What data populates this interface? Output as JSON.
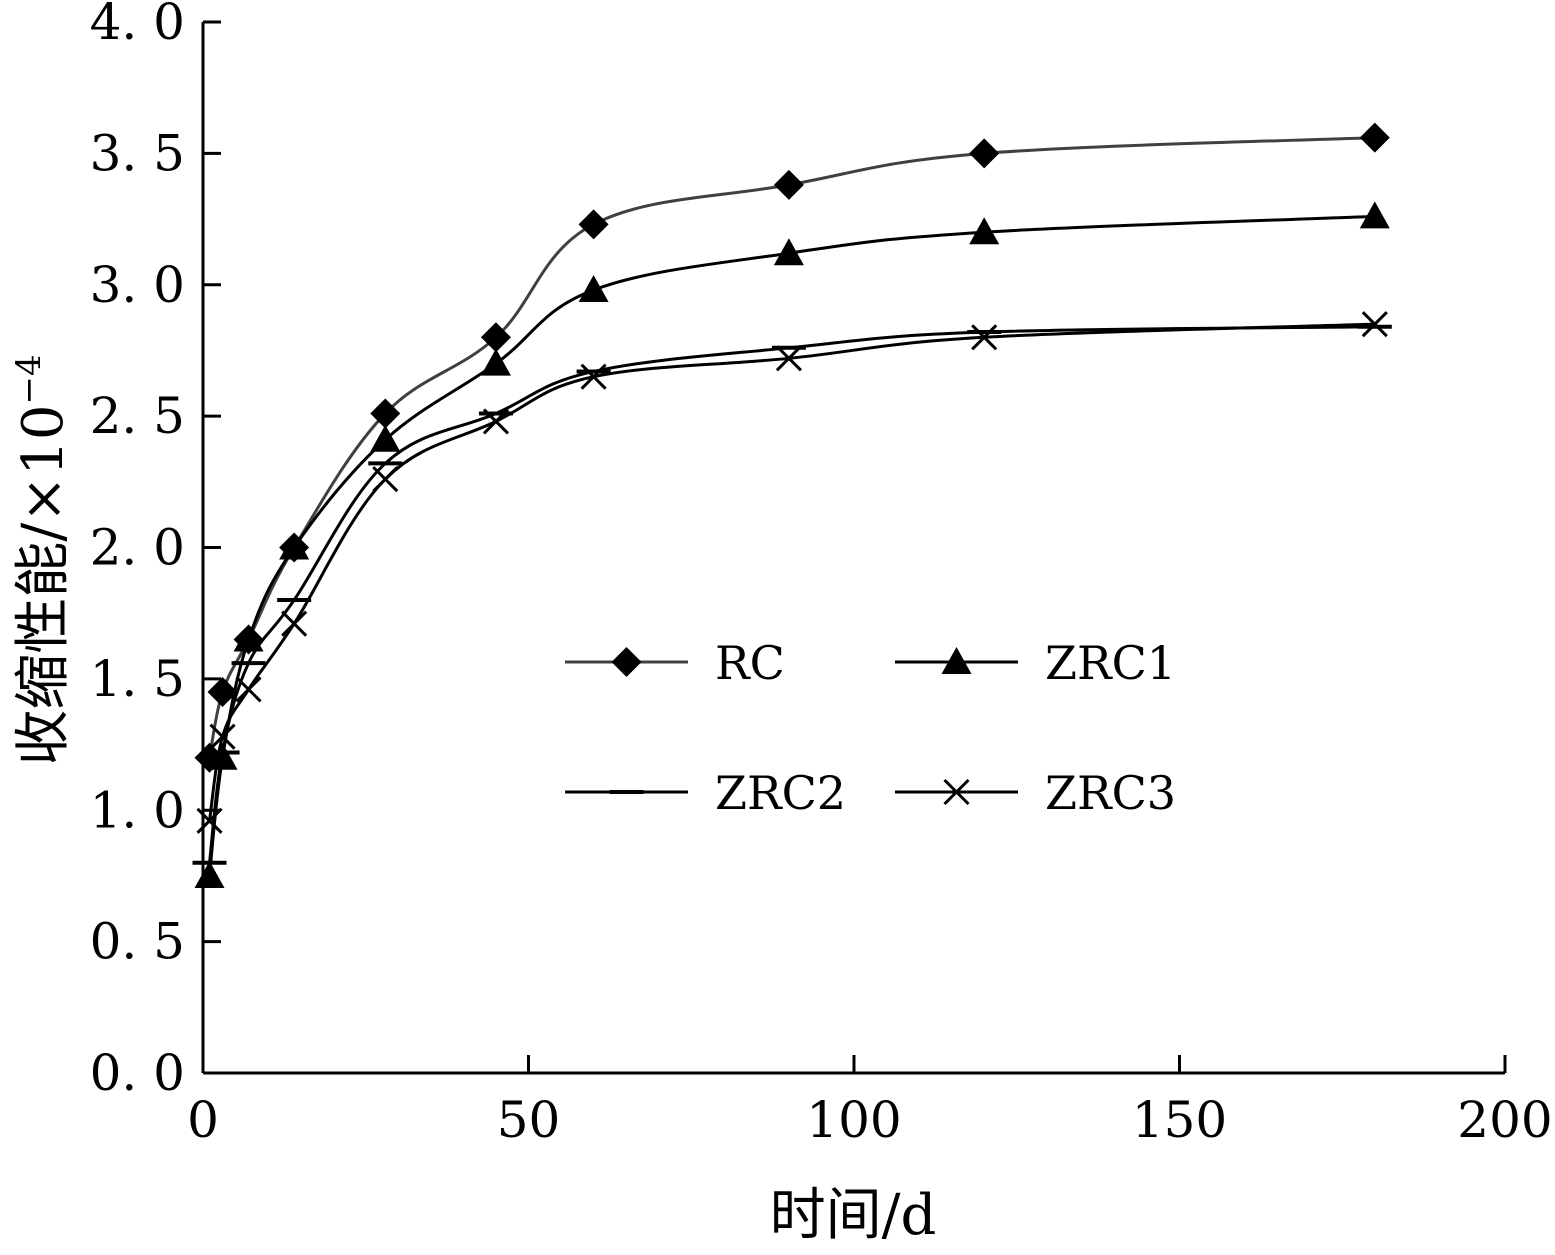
{
  "chart_data": {
    "type": "line",
    "title": "",
    "xlabel": "时间/d",
    "ylabel": "收缩性能/×10",
    "ylabel_exponent": "−4",
    "xlim": [
      0,
      200
    ],
    "ylim": [
      0.0,
      4.0
    ],
    "x_ticks": [
      0,
      50,
      100,
      150,
      200
    ],
    "x_tick_labels": [
      "0",
      "50",
      "100",
      "150",
      "200"
    ],
    "y_ticks": [
      0.0,
      0.5,
      1.0,
      1.5,
      2.0,
      2.5,
      3.0,
      3.5,
      4.0
    ],
    "y_tick_labels": [
      "0. 0",
      "0. 5",
      "1. 0",
      "1. 5",
      "2. 0",
      "2. 5",
      "3. 0",
      "3. 5",
      "4. 0"
    ],
    "grid": false,
    "legend_position": "center-right",
    "series": [
      {
        "name": "RC",
        "marker": "diamond",
        "color": "#404040",
        "x": [
          1,
          3,
          7,
          14,
          28,
          45,
          60,
          90,
          120,
          180
        ],
        "y": [
          1.2,
          1.45,
          1.65,
          2.0,
          2.51,
          2.8,
          3.23,
          3.38,
          3.5,
          3.56
        ]
      },
      {
        "name": "ZRC1",
        "marker": "triangle",
        "color": "#000000",
        "x": [
          1,
          3,
          7,
          14,
          28,
          45,
          60,
          90,
          120,
          180
        ],
        "y": [
          0.75,
          1.2,
          1.65,
          2.0,
          2.41,
          2.7,
          2.98,
          3.12,
          3.2,
          3.26
        ]
      },
      {
        "name": "ZRC2",
        "marker": "dash",
        "color": "#000000",
        "x": [
          1,
          3,
          7,
          14,
          28,
          45,
          60,
          90,
          120,
          180
        ],
        "y": [
          0.8,
          1.22,
          1.56,
          1.8,
          2.32,
          2.51,
          2.67,
          2.76,
          2.82,
          2.84
        ]
      },
      {
        "name": "ZRC3",
        "marker": "x",
        "color": "#000000",
        "x": [
          1,
          3,
          7,
          14,
          28,
          45,
          60,
          90,
          120,
          180
        ],
        "y": [
          0.96,
          1.28,
          1.46,
          1.71,
          2.26,
          2.48,
          2.65,
          2.72,
          2.8,
          2.85
        ]
      }
    ]
  }
}
